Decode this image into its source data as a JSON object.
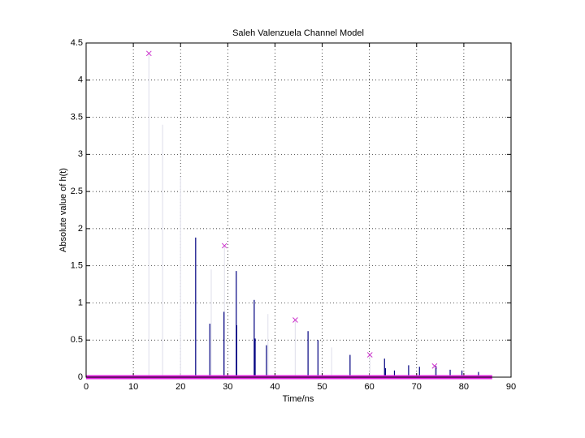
{
  "chart_data": {
    "type": "stem",
    "title": "Saleh Valenzuela Channel Model",
    "xlabel": "Time/ns",
    "ylabel": "Absolute value of h(t)",
    "xlim": [
      0,
      90
    ],
    "xticks": [
      0,
      10,
      20,
      30,
      40,
      50,
      60,
      70,
      80,
      90
    ],
    "ylim": [
      0,
      4.5
    ],
    "yticks": [
      0,
      0.5,
      1,
      1.5,
      2,
      2.5,
      3,
      3.5,
      4,
      4.5
    ],
    "grid": true,
    "series": [
      {
        "color": "#e4e4ee",
        "marker": "none",
        "x": [
          13.3,
          16.2,
          20.0,
          26.5,
          29.3,
          38.5,
          44.3,
          52.0,
          60.1,
          73.8
        ],
        "values": [
          4.35,
          3.4,
          2.7,
          1.45,
          1.77,
          0.85,
          0.77,
          0.4,
          0.3,
          0.15
        ]
      },
      {
        "color": "#000080",
        "marker": "none",
        "x": [
          23.2,
          26.2,
          29.2,
          31.8,
          31.9,
          35.6,
          35.8,
          38.2,
          47.0,
          49.1,
          55.9,
          63.2,
          63.4,
          65.3,
          68.3,
          70.6,
          74.1,
          77.1,
          79.6,
          83.1
        ],
        "values": [
          1.88,
          0.72,
          0.88,
          1.43,
          0.7,
          1.04,
          0.52,
          0.43,
          0.62,
          0.5,
          0.3,
          0.25,
          0.12,
          0.09,
          0.16,
          0.14,
          0.15,
          0.1,
          0.09,
          0.07
        ]
      },
      {
        "color": "#cc33cc",
        "marker": "x",
        "x": [
          13.3,
          29.3,
          44.3,
          60.1,
          73.8
        ],
        "values": [
          4.36,
          1.77,
          0.77,
          0.3,
          0.15
        ]
      },
      {
        "color": "#dd22dd",
        "marker": "line",
        "x": [
          0,
          86
        ],
        "values": [
          0,
          0
        ]
      }
    ]
  }
}
